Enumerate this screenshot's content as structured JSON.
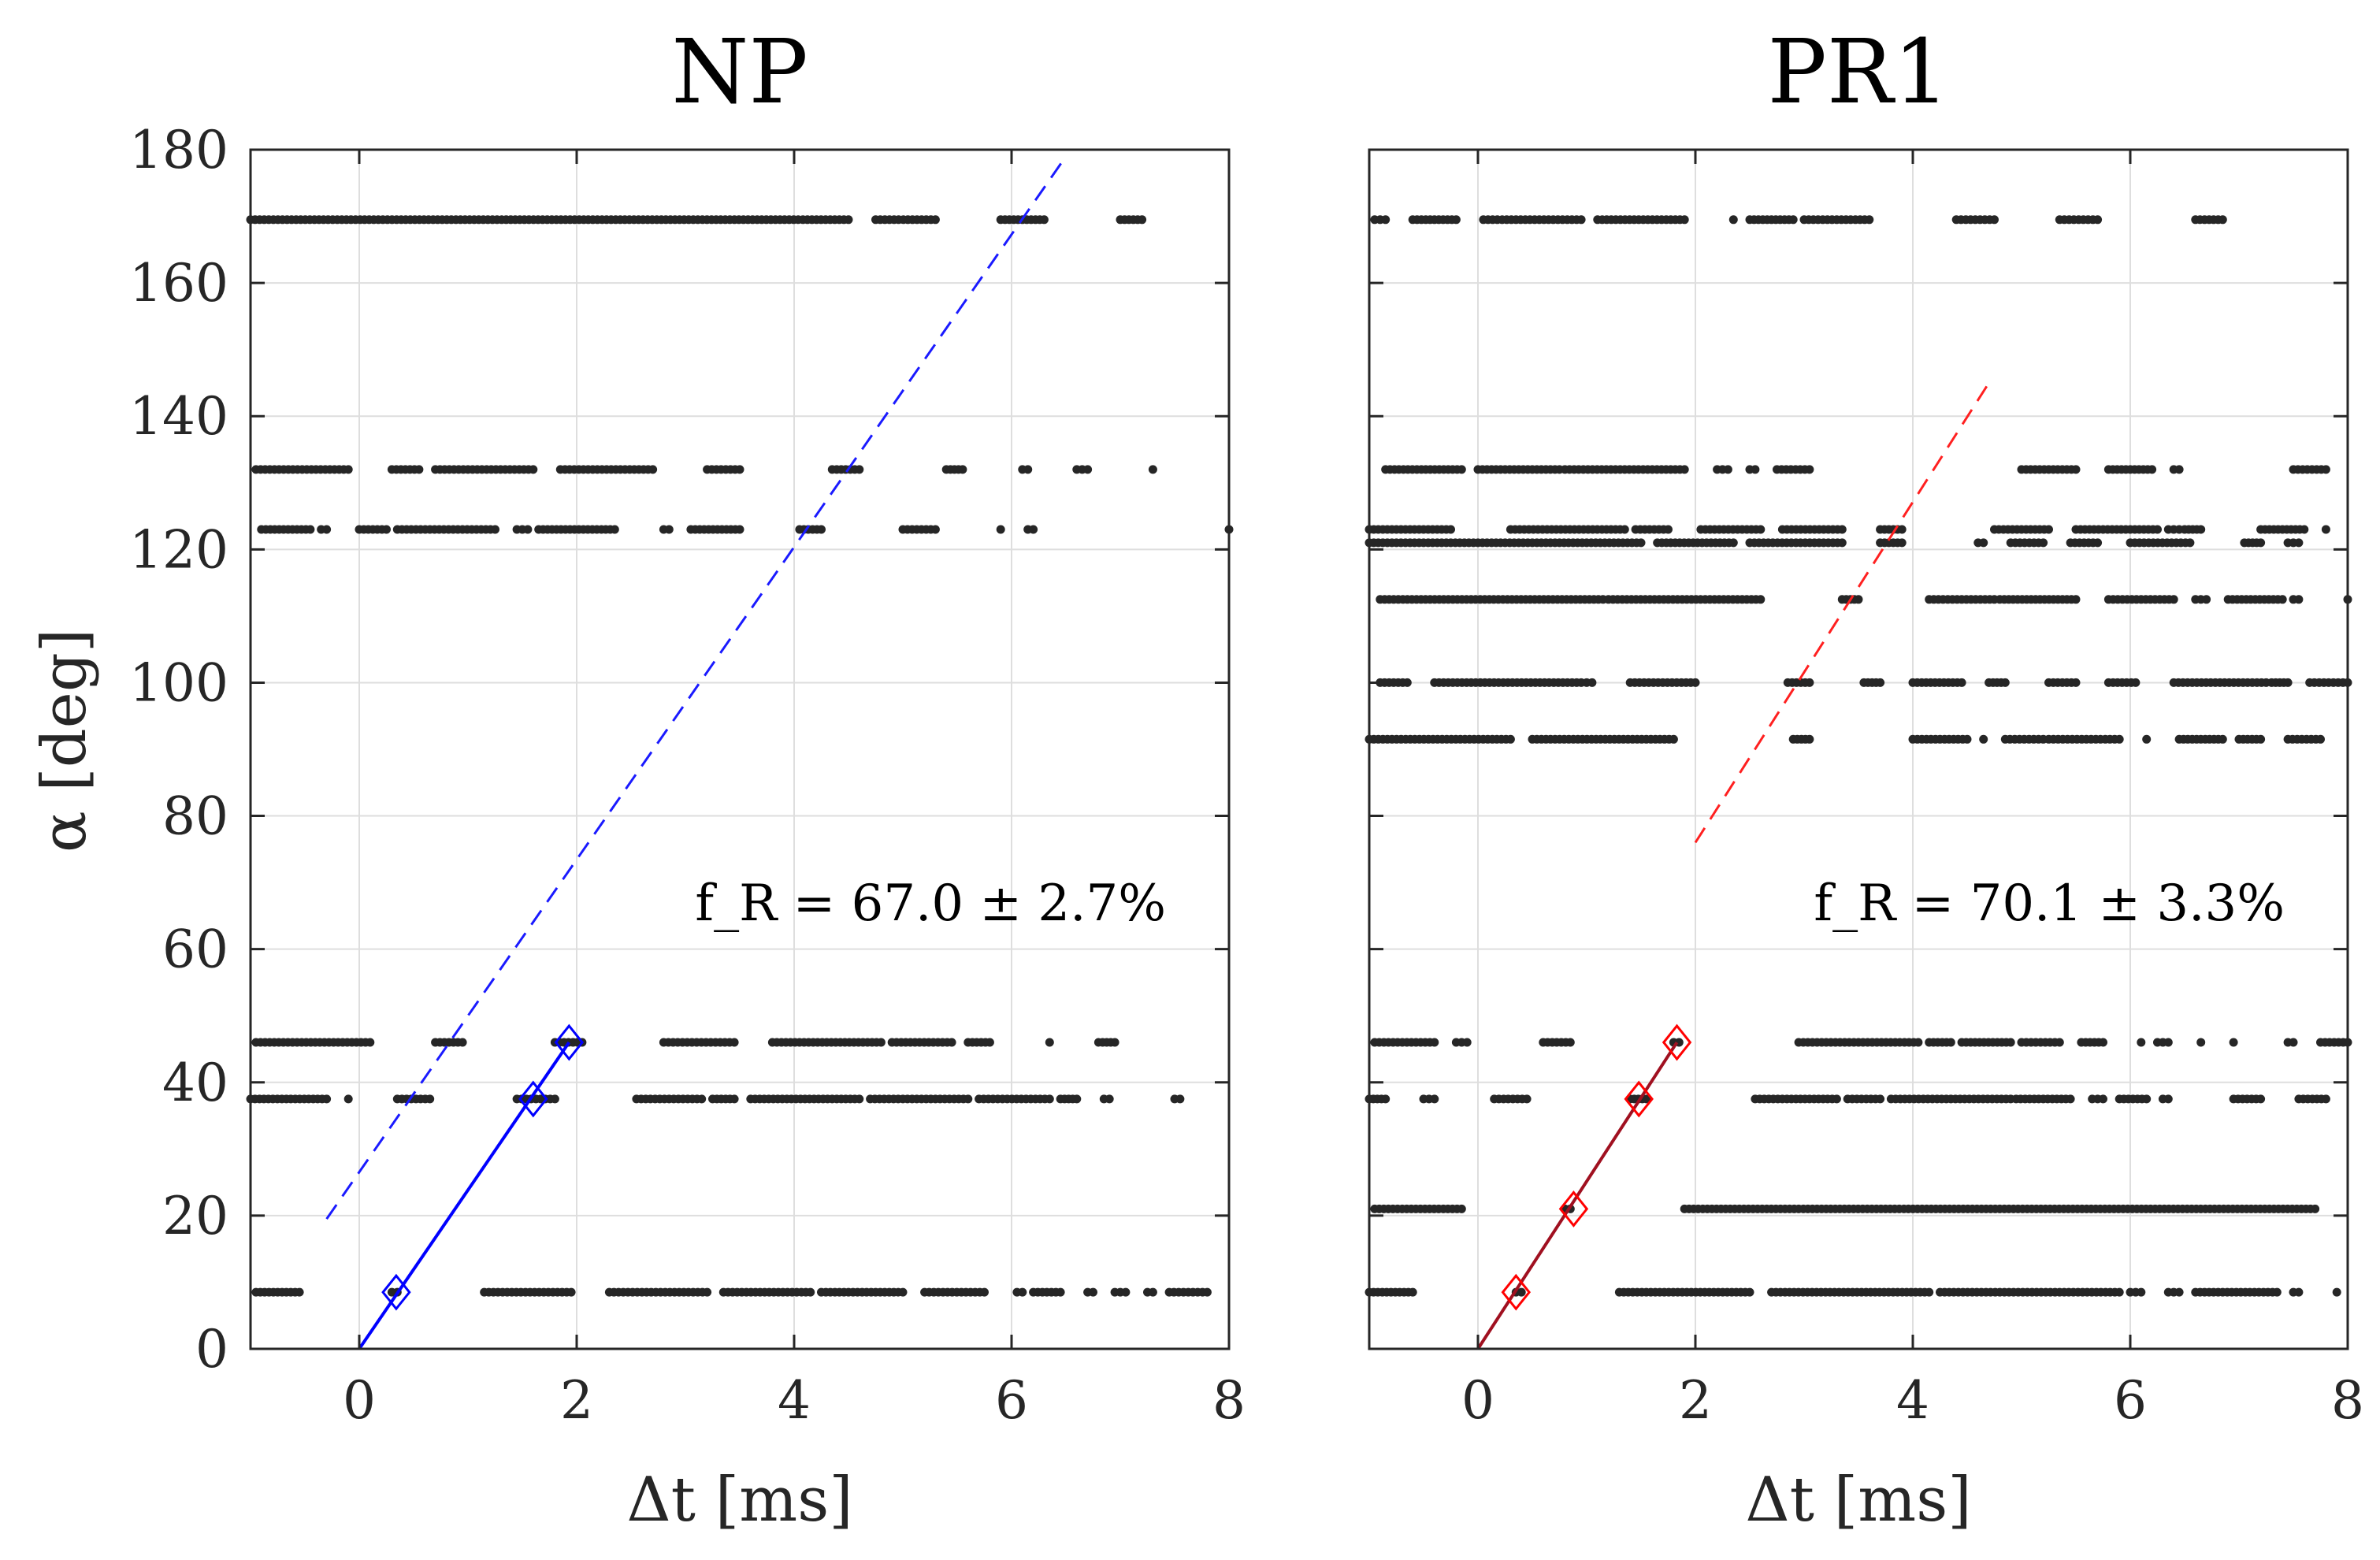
{
  "chart_data": [
    {
      "type": "scatter",
      "title": "NP",
      "xlabel": "Δt [ms]",
      "ylabel": "α [deg]",
      "xlim": [
        -1,
        8
      ],
      "ylim": [
        0,
        180
      ],
      "xticks": [
        "0",
        "2",
        "4",
        "6",
        "8"
      ],
      "yticks": [
        "0",
        "20",
        "40",
        "60",
        "80",
        "100",
        "120",
        "140",
        "160",
        "180"
      ],
      "grid": true,
      "annotation": "f_R = 67.0 ± 2.7%",
      "fit_color": "#0000ff",
      "dot_color": "#262626",
      "dot_rows": [
        {
          "alpha": 169.5,
          "segments": [
            [
              -1.0,
              4.5
            ],
            [
              4.75,
              5.3
            ],
            [
              5.9,
              6.3
            ],
            [
              7.0,
              7.2
            ]
          ]
        },
        {
          "alpha": 132,
          "segments": [
            [
              -0.95,
              -0.1
            ],
            [
              0.3,
              0.55
            ],
            [
              0.7,
              1.6
            ],
            [
              1.85,
              2.7
            ],
            [
              3.2,
              3.5
            ],
            [
              4.35,
              4.6
            ],
            [
              5.4,
              5.55
            ],
            [
              6.1,
              6.15
            ],
            [
              6.6,
              6.7
            ],
            [
              7.3,
              7.3
            ]
          ]
        },
        {
          "alpha": 123,
          "segments": [
            [
              -0.9,
              -0.45
            ],
            [
              -0.35,
              -0.3
            ],
            [
              0.0,
              0.25
            ],
            [
              0.35,
              1.25
            ],
            [
              1.45,
              1.55
            ],
            [
              1.65,
              2.35
            ],
            [
              2.8,
              2.85
            ],
            [
              3.05,
              3.5
            ],
            [
              4.05,
              4.25
            ],
            [
              5.0,
              5.3
            ],
            [
              5.9,
              5.9
            ],
            [
              6.15,
              6.2
            ],
            [
              8.0,
              8.0
            ]
          ]
        },
        {
          "alpha": 46,
          "segments": [
            [
              -0.95,
              0.1
            ],
            [
              0.7,
              0.95
            ],
            [
              1.8,
              2.05
            ],
            [
              2.8,
              3.45
            ],
            [
              3.8,
              4.8
            ],
            [
              4.9,
              5.45
            ],
            [
              5.6,
              5.8
            ],
            [
              6.35,
              6.35
            ],
            [
              6.8,
              6.95
            ]
          ]
        },
        {
          "alpha": 37.5,
          "segments": [
            [
              -1.0,
              -0.3
            ],
            [
              -0.1,
              -0.1
            ],
            [
              0.35,
              0.65
            ],
            [
              1.45,
              1.8
            ],
            [
              2.55,
              3.15
            ],
            [
              3.25,
              3.45
            ],
            [
              3.6,
              4.6
            ],
            [
              4.7,
              5.6
            ],
            [
              5.7,
              6.35
            ],
            [
              6.45,
              6.6
            ],
            [
              6.85,
              6.9
            ],
            [
              7.5,
              7.55
            ]
          ]
        },
        {
          "alpha": 8.5,
          "segments": [
            [
              -0.95,
              -0.55
            ],
            [
              0.3,
              0.35
            ],
            [
              1.15,
              1.95
            ],
            [
              2.3,
              3.2
            ],
            [
              3.35,
              4.15
            ],
            [
              4.25,
              5.0
            ],
            [
              5.2,
              5.75
            ],
            [
              6.05,
              6.1
            ],
            [
              6.2,
              6.45
            ],
            [
              6.7,
              6.75
            ],
            [
              6.95,
              7.05
            ],
            [
              7.25,
              7.3
            ],
            [
              7.45,
              7.8
            ]
          ]
        }
      ],
      "markers": [
        {
          "x": 0.34,
          "y": 8.5
        },
        {
          "x": 1.6,
          "y": 37.5
        },
        {
          "x": 1.93,
          "y": 46
        }
      ],
      "fit_line": {
        "x": [
          0,
          1.93
        ],
        "y": [
          0,
          46
        ]
      },
      "extrapolation": {
        "x": [
          -0.3,
          6.5
        ],
        "y": [
          19.5,
          179
        ]
      }
    },
    {
      "type": "scatter",
      "title": "PR1",
      "xlabel": "Δt [ms]",
      "ylabel": "",
      "xlim": [
        -1,
        8
      ],
      "ylim": [
        0,
        180
      ],
      "xticks": [
        "0",
        "2",
        "4",
        "6",
        "8"
      ],
      "yticks": [],
      "grid": true,
      "annotation": "f_R = 70.1 ± 3.3%",
      "fit_color": "#c00000",
      "dot_color": "#262626",
      "dot_rows": [
        {
          "alpha": 169.5,
          "segments": [
            [
              -0.95,
              -0.85
            ],
            [
              -0.6,
              -0.2
            ],
            [
              0.05,
              0.95
            ],
            [
              1.1,
              1.9
            ],
            [
              2.35,
              2.35
            ],
            [
              2.5,
              2.9
            ],
            [
              3.0,
              3.6
            ],
            [
              4.4,
              4.75
            ],
            [
              5.35,
              5.7
            ],
            [
              6.6,
              6.85
            ]
          ]
        },
        {
          "alpha": 132,
          "segments": [
            [
              -0.85,
              -0.15
            ],
            [
              0.0,
              0.75
            ],
            [
              0.8,
              1.9
            ],
            [
              2.2,
              2.3
            ],
            [
              2.5,
              2.55
            ],
            [
              2.75,
              3.05
            ],
            [
              5.0,
              5.5
            ],
            [
              5.8,
              6.2
            ],
            [
              6.4,
              6.45
            ],
            [
              7.5,
              7.8
            ]
          ]
        },
        {
          "alpha": 123,
          "segments": [
            [
              -1.0,
              -0.25
            ],
            [
              0.3,
              1.35
            ],
            [
              1.45,
              1.75
            ],
            [
              2.05,
              2.6
            ],
            [
              2.8,
              3.35
            ],
            [
              3.7,
              3.9
            ],
            [
              4.75,
              5.25
            ],
            [
              5.5,
              6.25
            ],
            [
              6.35,
              6.45
            ],
            [
              6.5,
              6.65
            ],
            [
              7.2,
              7.6
            ],
            [
              7.8,
              7.8
            ]
          ]
        },
        {
          "alpha": 121,
          "segments": [
            [
              -1.0,
              1.5
            ],
            [
              1.65,
              2.35
            ],
            [
              2.5,
              3.35
            ],
            [
              3.7,
              3.9
            ],
            [
              4.6,
              4.65
            ],
            [
              4.9,
              5.2
            ],
            [
              5.45,
              5.7
            ],
            [
              6.0,
              6.55
            ],
            [
              7.05,
              7.2
            ],
            [
              7.45,
              7.55
            ]
          ]
        },
        {
          "alpha": 112.5,
          "segments": [
            [
              -0.9,
              1.15
            ],
            [
              1.2,
              2.6
            ],
            [
              3.35,
              3.5
            ],
            [
              4.15,
              4.75
            ],
            [
              4.8,
              5.5
            ],
            [
              5.8,
              6.4
            ],
            [
              6.6,
              6.7
            ],
            [
              6.9,
              7.4
            ],
            [
              7.5,
              7.55
            ],
            [
              8.0,
              8.0
            ]
          ]
        },
        {
          "alpha": 100,
          "segments": [
            [
              -0.9,
              -0.65
            ],
            [
              -0.4,
              0.95
            ],
            [
              1.0,
              1.05
            ],
            [
              1.4,
              2.0
            ],
            [
              2.85,
              3.05
            ],
            [
              3.55,
              3.7
            ],
            [
              4.0,
              4.45
            ],
            [
              4.7,
              4.85
            ],
            [
              5.25,
              5.5
            ],
            [
              5.8,
              6.05
            ],
            [
              6.4,
              7.25
            ],
            [
              7.3,
              7.45
            ],
            [
              7.65,
              8.0
            ]
          ]
        },
        {
          "alpha": 91.5,
          "segments": [
            [
              -1.0,
              0.3
            ],
            [
              0.5,
              1.8
            ],
            [
              2.9,
              3.05
            ],
            [
              4.0,
              4.5
            ],
            [
              4.65,
              4.65
            ],
            [
              4.85,
              5.2
            ],
            [
              5.25,
              5.9
            ],
            [
              6.15,
              6.15
            ],
            [
              6.45,
              6.85
            ],
            [
              7.0,
              7.2
            ],
            [
              7.45,
              7.75
            ]
          ]
        },
        {
          "alpha": 46,
          "segments": [
            [
              -0.95,
              -0.4
            ],
            [
              -0.2,
              -0.1
            ],
            [
              0.6,
              0.85
            ],
            [
              1.8,
              1.85
            ],
            [
              2.95,
              4.05
            ],
            [
              4.15,
              4.35
            ],
            [
              4.45,
              4.9
            ],
            [
              5.0,
              5.35
            ],
            [
              5.55,
              5.75
            ],
            [
              6.1,
              6.1
            ],
            [
              6.25,
              6.35
            ],
            [
              6.65,
              6.65
            ],
            [
              6.95,
              6.95
            ],
            [
              7.45,
              7.5
            ],
            [
              7.75,
              8.0
            ]
          ]
        },
        {
          "alpha": 37.5,
          "segments": [
            [
              -1.0,
              -0.85
            ],
            [
              -0.5,
              -0.4
            ],
            [
              0.15,
              0.45
            ],
            [
              1.4,
              1.55
            ],
            [
              2.55,
              3.3
            ],
            [
              3.4,
              3.7
            ],
            [
              3.8,
              4.9
            ],
            [
              4.95,
              5.45
            ],
            [
              5.65,
              5.75
            ],
            [
              5.9,
              6.15
            ],
            [
              6.3,
              6.35
            ],
            [
              6.95,
              7.2
            ],
            [
              7.55,
              7.8
            ]
          ]
        },
        {
          "alpha": 21,
          "segments": [
            [
              -0.95,
              -0.15
            ],
            [
              0.8,
              0.85
            ],
            [
              1.9,
              7.7
            ]
          ]
        },
        {
          "alpha": 8.5,
          "segments": [
            [
              -1.0,
              -0.6
            ],
            [
              0.35,
              0.4
            ],
            [
              1.3,
              2.5
            ],
            [
              2.7,
              4.15
            ],
            [
              4.25,
              5.9
            ],
            [
              6.0,
              6.1
            ],
            [
              6.35,
              6.45
            ],
            [
              6.6,
              7.35
            ],
            [
              7.5,
              7.55
            ],
            [
              7.9,
              7.9
            ]
          ]
        }
      ],
      "markers": [
        {
          "x": 0.35,
          "y": 8.5
        },
        {
          "x": 0.88,
          "y": 21
        },
        {
          "x": 1.48,
          "y": 37.5
        },
        {
          "x": 1.83,
          "y": 46
        }
      ],
      "fit_line": {
        "x": [
          0,
          1.83
        ],
        "y": [
          0,
          46
        ]
      },
      "extrapolation": {
        "x": [
          2.0,
          4.7
        ],
        "y": [
          76,
          145
        ]
      }
    }
  ]
}
